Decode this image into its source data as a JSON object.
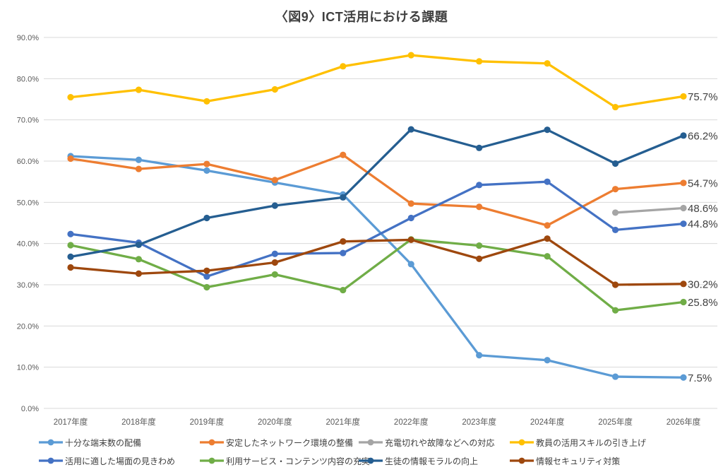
{
  "title": "〈図9〉ICT活用における課題",
  "chart_data": {
    "type": "line",
    "title": "〈図9〉ICT活用における課題",
    "x": [
      "2017年度",
      "2018年度",
      "2019年度",
      "2020年度",
      "2021年度",
      "2022年度",
      "2023年度",
      "2024年度",
      "2025年度",
      "2026年度"
    ],
    "xlabel": "",
    "ylabel": "",
    "ylim": [
      0,
      90
    ],
    "ytick_step": 10,
    "ytick_labels": [
      "0.0%",
      "10.0%",
      "20.0%",
      "30.0%",
      "40.0%",
      "50.0%",
      "60.0%",
      "70.0%",
      "80.0%",
      "90.0%"
    ],
    "grid": true,
    "legend_position": "bottom",
    "gridline_color": "#D9D9D9",
    "axis_text_color": "#595959",
    "label_text_color": "#404040",
    "series": [
      {
        "name": "十分な端末数の配備",
        "color": "#5B9BD5",
        "values": [
          61.2,
          60.3,
          57.7,
          54.8,
          51.9,
          35.0,
          12.9,
          11.7,
          7.7,
          7.5
        ],
        "end_label": "7.5%"
      },
      {
        "name": "安定したネットワーク環境の整備",
        "color": "#ED7D31",
        "values": [
          60.6,
          58.1,
          59.3,
          55.4,
          61.5,
          49.7,
          48.9,
          44.4,
          53.2,
          54.7
        ],
        "end_label": "54.7%"
      },
      {
        "name": "充電切れや故障などへの対応",
        "color": "#A5A5A5",
        "values": [
          null,
          null,
          null,
          null,
          null,
          null,
          null,
          null,
          47.5,
          48.6
        ],
        "end_label": "48.6%"
      },
      {
        "name": "教員の活用スキルの引き上げ",
        "color": "#FFC000",
        "values": [
          75.5,
          77.3,
          74.5,
          77.4,
          83.0,
          85.7,
          84.2,
          83.7,
          73.1,
          75.7
        ],
        "end_label": "75.7%"
      },
      {
        "name": "活用に適した場面の見きわめ",
        "color": "#4472C4",
        "values": [
          42.3,
          40.2,
          32.0,
          37.5,
          37.7,
          46.2,
          54.2,
          55.0,
          43.3,
          44.8
        ],
        "end_label": "44.8%"
      },
      {
        "name": "利用サービス・コンテンツ内容の充実",
        "color": "#70AD47",
        "values": [
          39.6,
          36.2,
          29.4,
          32.5,
          28.7,
          41.0,
          39.5,
          36.9,
          23.8,
          25.8
        ],
        "end_label": "25.8%"
      },
      {
        "name": "生徒の情報モラルの向上",
        "color": "#255E91",
        "values": [
          36.8,
          39.7,
          46.2,
          49.2,
          51.2,
          67.7,
          63.2,
          67.6,
          59.4,
          66.2
        ],
        "end_label": "66.2%"
      },
      {
        "name": "情報セキュリティ対策",
        "color": "#9E480E",
        "values": [
          34.2,
          32.7,
          33.4,
          35.4,
          40.5,
          40.9,
          36.3,
          41.2,
          30.0,
          30.2
        ],
        "end_label": "30.2%"
      }
    ]
  }
}
